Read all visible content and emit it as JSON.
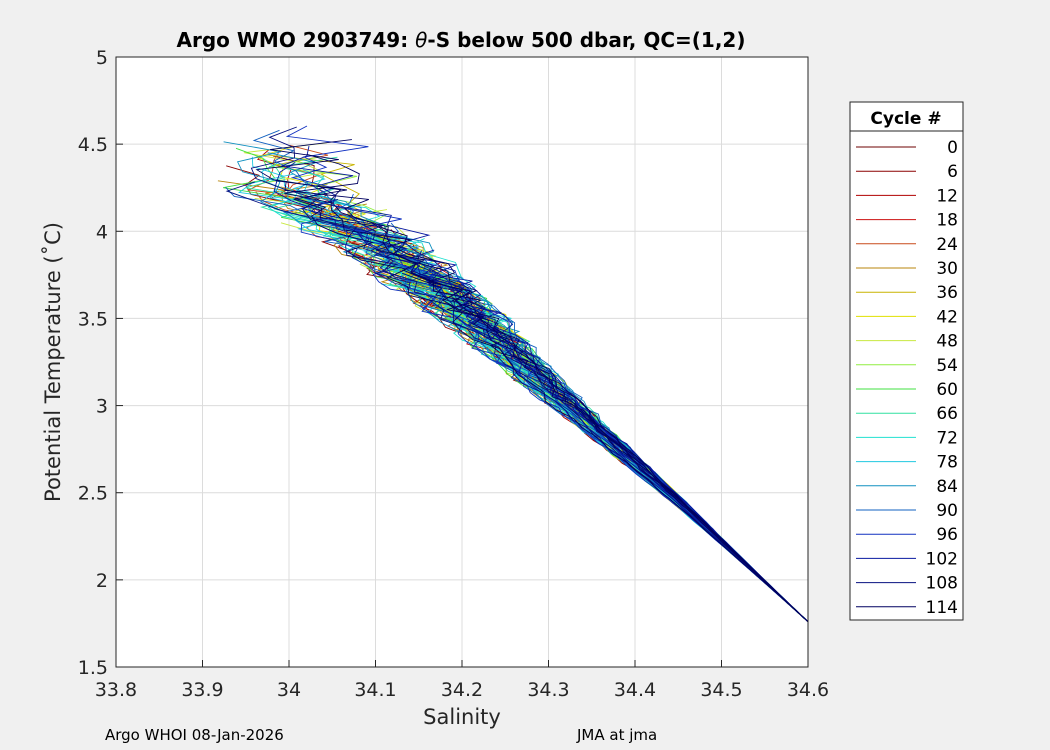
{
  "chart_data": {
    "type": "line",
    "title": "Argo WMO 2903749: θ-S below 500 dbar,  QC=(1,2)",
    "title_parts": {
      "prefix": "Argo WMO 2903749: ",
      "symbol": "θ",
      "suffix": "-S below 500 dbar,  QC=(1,2)"
    },
    "xlabel": "Salinity",
    "ylabel": "Potential Temperature (˚C)",
    "xlim": [
      33.8,
      34.6
    ],
    "ylim": [
      1.5,
      5
    ],
    "xticks": [
      "33.8",
      "33.9",
      "34",
      "34.1",
      "34.2",
      "34.3",
      "34.4",
      "34.5",
      "34.6"
    ],
    "yticks": [
      "1.5",
      "2",
      "2.5",
      "3",
      "3.5",
      "4",
      "4.5",
      "5"
    ],
    "grid": true,
    "legend": {
      "title": "Cycle #",
      "position": "right",
      "entries": [
        "0",
        "6",
        "12",
        "18",
        "24",
        "30",
        "36",
        "42",
        "48",
        "54",
        "60",
        "66",
        "72",
        "78",
        "84",
        "90",
        "96",
        "102",
        "108",
        "114"
      ]
    },
    "cycle_count": 117,
    "colormap": [
      "#6e0000",
      "#8c0000",
      "#b00000",
      "#cc1010",
      "#c84a1a",
      "#b8860b",
      "#c8b400",
      "#e0e000",
      "#c8e840",
      "#90ee40",
      "#40e040",
      "#30e0a0",
      "#20e0d0",
      "#20c8e0",
      "#1090c0",
      "#1060c0",
      "#1030c0",
      "#0818a0",
      "#061080",
      "#000060"
    ],
    "series_shape": [
      {
        "s": 34.6,
        "t": 1.76
      },
      {
        "s": 34.45,
        "t": 2.45
      },
      {
        "s": 34.3,
        "t": 3.1
      },
      {
        "s": 34.2,
        "t": 3.55
      },
      {
        "s": 34.1,
        "t": 3.95
      },
      {
        "s": 34.0,
        "t": 4.25
      }
    ]
  },
  "footer": {
    "left": "Argo WHOI 08-Jan-2026",
    "right": "JMA at jma"
  }
}
